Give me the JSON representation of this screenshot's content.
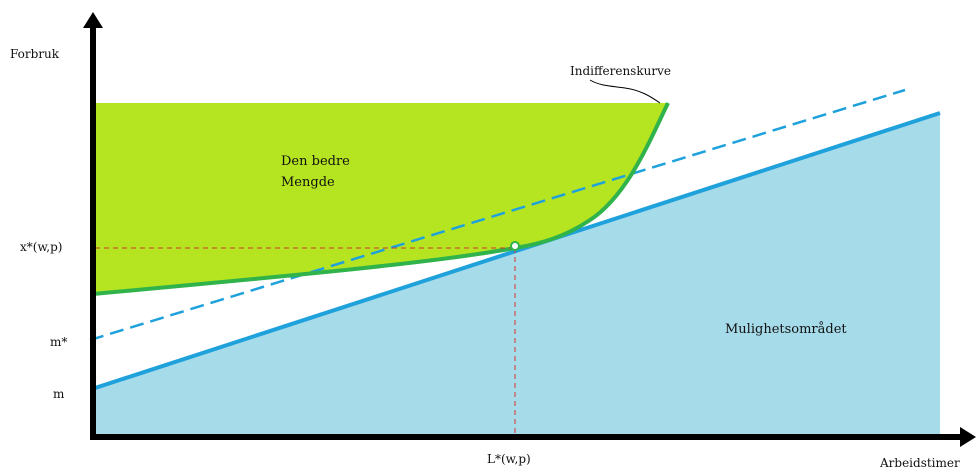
{
  "axes": {
    "y_label": "Forbruk",
    "x_label": "Arbeidstimer"
  },
  "ticks": {
    "y": {
      "x_star": "x*(w,p)",
      "m_star": "m*",
      "m": "m"
    },
    "x": {
      "l_star": "L*(w,p)"
    }
  },
  "regions": {
    "better_set_line1": "Den bedre",
    "better_set_line2": "Mengde",
    "feasible": "Mulighetsområdet"
  },
  "annotations": {
    "indifference_curve": "Indifferenskurve"
  },
  "colors": {
    "better_set_fill": "#b4e520",
    "indifference_curve": "#2fb34a",
    "budget_line": "#1fa1dc",
    "feasible_fill": "#a6dbea",
    "guide_lines": "#d9342b",
    "axes": "#000000"
  }
}
